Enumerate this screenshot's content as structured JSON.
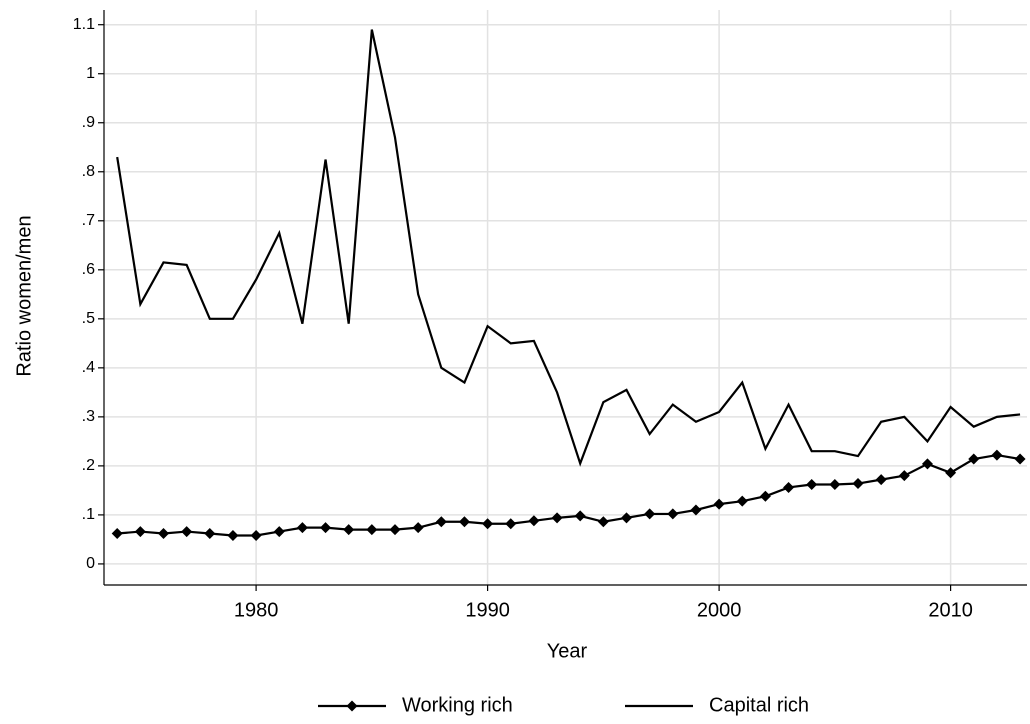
{
  "chart_data": {
    "type": "line",
    "x_label": "Year",
    "y_label": "Ratio women/men",
    "x": [
      1974,
      1975,
      1976,
      1977,
      1978,
      1979,
      1980,
      1981,
      1982,
      1983,
      1984,
      1985,
      1986,
      1987,
      1988,
      1989,
      1990,
      1991,
      1992,
      1993,
      1994,
      1995,
      1996,
      1997,
      1998,
      1999,
      2000,
      2001,
      2002,
      2003,
      2004,
      2005,
      2006,
      2007,
      2008,
      2009,
      2010,
      2011,
      2012,
      2013
    ],
    "series": [
      {
        "name": "Working rich",
        "color": "#000000",
        "marker": "diamond",
        "values": [
          0.062,
          0.066,
          0.062,
          0.066,
          0.062,
          0.058,
          0.058,
          0.066,
          0.074,
          0.074,
          0.07,
          0.07,
          0.07,
          0.074,
          0.086,
          0.086,
          0.082,
          0.082,
          0.088,
          0.094,
          0.098,
          0.086,
          0.094,
          0.102,
          0.102,
          0.11,
          0.122,
          0.128,
          0.138,
          0.156,
          0.162,
          0.162,
          0.164,
          0.172,
          0.18,
          0.204,
          0.186,
          0.214,
          0.222,
          0.214
        ]
      },
      {
        "name": "Capital rich",
        "color": "#000000",
        "values": [
          0.83,
          0.53,
          0.615,
          0.61,
          0.5,
          0.5,
          0.58,
          0.675,
          0.49,
          0.825,
          0.49,
          1.09,
          0.87,
          0.55,
          0.4,
          0.37,
          0.485,
          0.45,
          0.455,
          0.35,
          0.205,
          0.33,
          0.355,
          0.265,
          0.325,
          0.29,
          0.31,
          0.37,
          0.235,
          0.325,
          0.23,
          0.23,
          0.22,
          0.29,
          0.3,
          0.25,
          0.32,
          0.28,
          0.3,
          0.305
        ]
      }
    ],
    "xlim": [
      1973.43,
      2013.3
    ],
    "xticks": [
      1980,
      1990,
      2000,
      2010
    ],
    "ylim": [
      -0.043,
      1.13
    ],
    "yticks": [
      0,
      {
        "value": 0.1,
        "label": ".1"
      },
      {
        "value": 0.2,
        "label": ".2"
      },
      {
        "value": 0.3,
        "label": ".3"
      },
      {
        "value": 0.4,
        "label": ".4"
      },
      {
        "value": 0.5,
        "label": ".5"
      },
      {
        "value": 0.6,
        "label": ".6"
      },
      {
        "value": 0.7,
        "label": ".7"
      },
      {
        "value": 0.8,
        "label": ".8"
      },
      {
        "value": 0.9,
        "label": ".9"
      },
      1,
      1.1
    ],
    "grid": true,
    "legend": "bottom"
  }
}
